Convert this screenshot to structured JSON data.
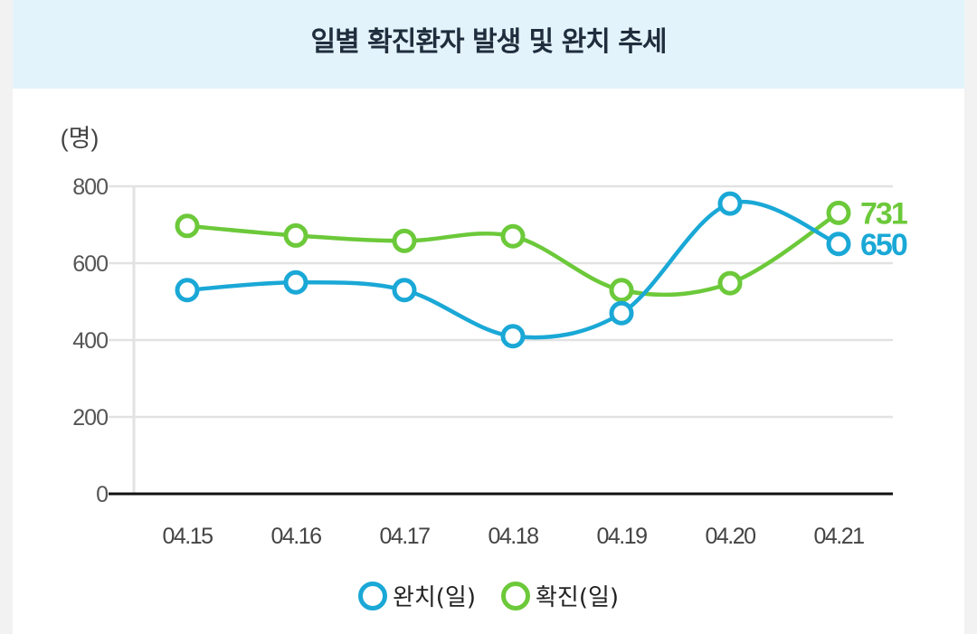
{
  "header": {
    "title": "일별 확진환자 발생 및 완치 추세"
  },
  "colors": {
    "recovered": "#1aa8d6",
    "confirmed": "#6cc93a",
    "grid": "#e2e2e2",
    "axis": "#111111"
  },
  "chart_data": {
    "type": "line",
    "title": "일별 확진환자 발생 및 완치 추세",
    "ylabel": "(명)",
    "xlabel": "",
    "ylim": [
      0,
      800
    ],
    "yticks": [
      0,
      200,
      400,
      600,
      800
    ],
    "categories": [
      "04.15",
      "04.16",
      "04.17",
      "04.18",
      "04.19",
      "04.20",
      "04.21"
    ],
    "series": [
      {
        "name": "완치(일)",
        "key": "recovered",
        "values": [
          530,
          550,
          530,
          410,
          470,
          755,
          650
        ]
      },
      {
        "name": "확진(일)",
        "key": "confirmed",
        "values": [
          697,
          672,
          658,
          670,
          530,
          548,
          731
        ]
      }
    ],
    "end_labels": [
      {
        "series": "확진(일)",
        "text": "731"
      },
      {
        "series": "완치(일)",
        "text": "650"
      }
    ],
    "legend": "bottom-center",
    "grid": true
  }
}
